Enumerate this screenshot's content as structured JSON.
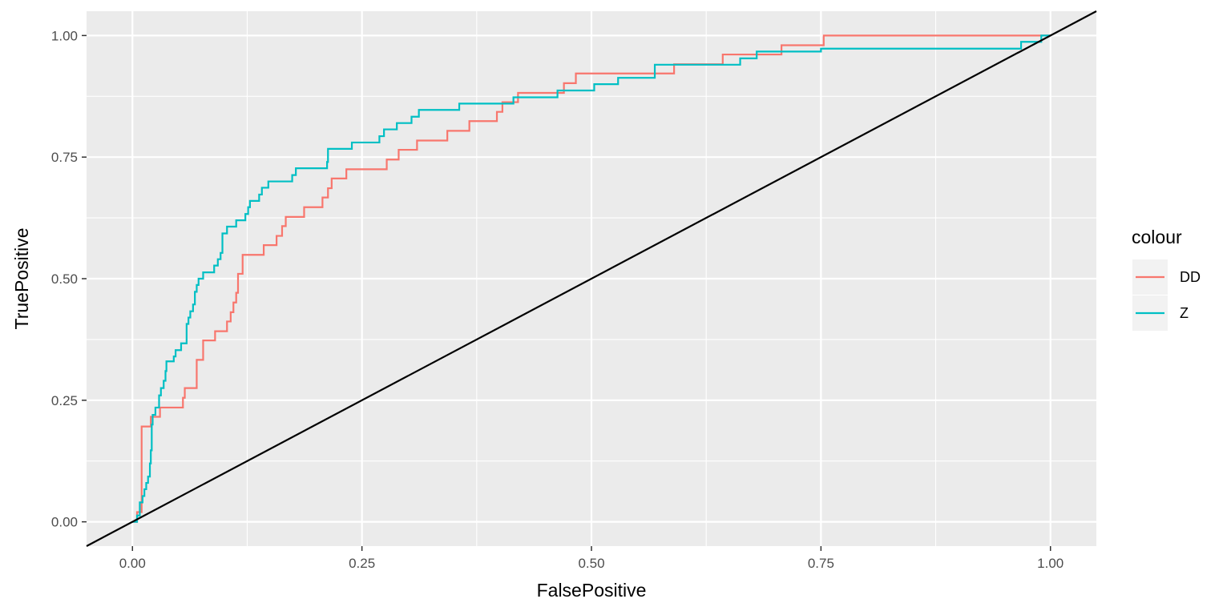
{
  "chart_data": {
    "type": "line",
    "xlabel": "FalsePositive",
    "ylabel": "TruePositive",
    "xlim": [
      -0.05,
      1.05
    ],
    "ylim": [
      -0.05,
      1.05
    ],
    "x_ticks": [
      0,
      0.25,
      0.5,
      0.75,
      1
    ],
    "x_tick_labels": [
      "0.00",
      "0.25",
      "0.50",
      "0.75",
      "1.00"
    ],
    "y_ticks": [
      0,
      0.25,
      0.5,
      0.75,
      1
    ],
    "y_tick_labels": [
      "0.00",
      "0.25",
      "0.50",
      "0.75",
      "1.00"
    ],
    "grid": true,
    "legend": {
      "title": "colour",
      "position": "right"
    },
    "reference_line": {
      "slope": 1,
      "intercept": 0,
      "color": "#000000"
    },
    "series": [
      {
        "name": "DD",
        "color": "#F8766D",
        "points": [
          [
            0.0,
            0.0
          ],
          [
            0.005,
            0.0
          ],
          [
            0.005,
            0.02
          ],
          [
            0.01,
            0.02
          ],
          [
            0.01,
            0.196
          ],
          [
            0.02,
            0.196
          ],
          [
            0.02,
            0.216
          ],
          [
            0.03,
            0.216
          ],
          [
            0.03,
            0.235
          ],
          [
            0.055,
            0.235
          ],
          [
            0.055,
            0.255
          ],
          [
            0.057,
            0.255
          ],
          [
            0.057,
            0.275
          ],
          [
            0.07,
            0.275
          ],
          [
            0.07,
            0.333
          ],
          [
            0.077,
            0.333
          ],
          [
            0.077,
            0.373
          ],
          [
            0.09,
            0.373
          ],
          [
            0.09,
            0.392
          ],
          [
            0.103,
            0.392
          ],
          [
            0.103,
            0.412
          ],
          [
            0.107,
            0.412
          ],
          [
            0.107,
            0.431
          ],
          [
            0.11,
            0.431
          ],
          [
            0.11,
            0.451
          ],
          [
            0.113,
            0.451
          ],
          [
            0.113,
            0.471
          ],
          [
            0.115,
            0.471
          ],
          [
            0.115,
            0.51
          ],
          [
            0.12,
            0.51
          ],
          [
            0.12,
            0.549
          ],
          [
            0.143,
            0.549
          ],
          [
            0.143,
            0.569
          ],
          [
            0.157,
            0.569
          ],
          [
            0.157,
            0.588
          ],
          [
            0.163,
            0.588
          ],
          [
            0.163,
            0.608
          ],
          [
            0.167,
            0.608
          ],
          [
            0.167,
            0.627
          ],
          [
            0.187,
            0.627
          ],
          [
            0.187,
            0.647
          ],
          [
            0.207,
            0.647
          ],
          [
            0.207,
            0.667
          ],
          [
            0.213,
            0.667
          ],
          [
            0.213,
            0.686
          ],
          [
            0.217,
            0.686
          ],
          [
            0.217,
            0.706
          ],
          [
            0.233,
            0.706
          ],
          [
            0.233,
            0.725
          ],
          [
            0.277,
            0.725
          ],
          [
            0.277,
            0.745
          ],
          [
            0.29,
            0.745
          ],
          [
            0.29,
            0.765
          ],
          [
            0.31,
            0.765
          ],
          [
            0.31,
            0.784
          ],
          [
            0.343,
            0.784
          ],
          [
            0.343,
            0.804
          ],
          [
            0.367,
            0.804
          ],
          [
            0.367,
            0.824
          ],
          [
            0.397,
            0.824
          ],
          [
            0.397,
            0.843
          ],
          [
            0.403,
            0.843
          ],
          [
            0.403,
            0.863
          ],
          [
            0.42,
            0.863
          ],
          [
            0.42,
            0.882
          ],
          [
            0.47,
            0.882
          ],
          [
            0.47,
            0.902
          ],
          [
            0.483,
            0.902
          ],
          [
            0.483,
            0.922
          ],
          [
            0.59,
            0.922
          ],
          [
            0.59,
            0.941
          ],
          [
            0.643,
            0.941
          ],
          [
            0.643,
            0.961
          ],
          [
            0.707,
            0.961
          ],
          [
            0.707,
            0.98
          ],
          [
            0.753,
            0.98
          ],
          [
            0.753,
            1.0
          ],
          [
            1.0,
            1.0
          ]
        ]
      },
      {
        "name": "Z",
        "color": "#00BFC4",
        "points": [
          [
            0.0,
            0.0
          ],
          [
            0.005,
            0.0
          ],
          [
            0.005,
            0.013
          ],
          [
            0.008,
            0.013
          ],
          [
            0.008,
            0.04
          ],
          [
            0.011,
            0.04
          ],
          [
            0.011,
            0.053
          ],
          [
            0.013,
            0.053
          ],
          [
            0.013,
            0.067
          ],
          [
            0.015,
            0.067
          ],
          [
            0.015,
            0.08
          ],
          [
            0.017,
            0.08
          ],
          [
            0.017,
            0.093
          ],
          [
            0.019,
            0.093
          ],
          [
            0.019,
            0.12
          ],
          [
            0.02,
            0.12
          ],
          [
            0.02,
            0.147
          ],
          [
            0.021,
            0.147
          ],
          [
            0.021,
            0.2
          ],
          [
            0.022,
            0.2
          ],
          [
            0.022,
            0.22
          ],
          [
            0.025,
            0.22
          ],
          [
            0.025,
            0.235
          ],
          [
            0.029,
            0.235
          ],
          [
            0.029,
            0.26
          ],
          [
            0.031,
            0.26
          ],
          [
            0.031,
            0.275
          ],
          [
            0.034,
            0.275
          ],
          [
            0.034,
            0.29
          ],
          [
            0.036,
            0.29
          ],
          [
            0.036,
            0.31
          ],
          [
            0.037,
            0.31
          ],
          [
            0.037,
            0.33
          ],
          [
            0.045,
            0.33
          ],
          [
            0.045,
            0.34
          ],
          [
            0.047,
            0.34
          ],
          [
            0.047,
            0.353
          ],
          [
            0.053,
            0.353
          ],
          [
            0.053,
            0.367
          ],
          [
            0.059,
            0.367
          ],
          [
            0.059,
            0.407
          ],
          [
            0.061,
            0.407
          ],
          [
            0.061,
            0.42
          ],
          [
            0.063,
            0.42
          ],
          [
            0.063,
            0.433
          ],
          [
            0.066,
            0.433
          ],
          [
            0.066,
            0.447
          ],
          [
            0.068,
            0.447
          ],
          [
            0.068,
            0.473
          ],
          [
            0.07,
            0.473
          ],
          [
            0.07,
            0.487
          ],
          [
            0.072,
            0.487
          ],
          [
            0.072,
            0.5
          ],
          [
            0.077,
            0.5
          ],
          [
            0.077,
            0.513
          ],
          [
            0.089,
            0.513
          ],
          [
            0.089,
            0.527
          ],
          [
            0.093,
            0.527
          ],
          [
            0.093,
            0.54
          ],
          [
            0.096,
            0.54
          ],
          [
            0.096,
            0.553
          ],
          [
            0.098,
            0.553
          ],
          [
            0.098,
            0.593
          ],
          [
            0.103,
            0.593
          ],
          [
            0.103,
            0.607
          ],
          [
            0.113,
            0.607
          ],
          [
            0.113,
            0.62
          ],
          [
            0.123,
            0.62
          ],
          [
            0.123,
            0.633
          ],
          [
            0.126,
            0.633
          ],
          [
            0.126,
            0.647
          ],
          [
            0.128,
            0.647
          ],
          [
            0.128,
            0.66
          ],
          [
            0.138,
            0.66
          ],
          [
            0.138,
            0.673
          ],
          [
            0.141,
            0.673
          ],
          [
            0.141,
            0.687
          ],
          [
            0.148,
            0.687
          ],
          [
            0.148,
            0.7
          ],
          [
            0.174,
            0.7
          ],
          [
            0.174,
            0.713
          ],
          [
            0.178,
            0.713
          ],
          [
            0.178,
            0.727
          ],
          [
            0.212,
            0.727
          ],
          [
            0.212,
            0.74
          ],
          [
            0.213,
            0.74
          ],
          [
            0.213,
            0.767
          ],
          [
            0.239,
            0.767
          ],
          [
            0.239,
            0.78
          ],
          [
            0.269,
            0.78
          ],
          [
            0.269,
            0.793
          ],
          [
            0.274,
            0.793
          ],
          [
            0.274,
            0.807
          ],
          [
            0.288,
            0.807
          ],
          [
            0.288,
            0.82
          ],
          [
            0.304,
            0.82
          ],
          [
            0.304,
            0.833
          ],
          [
            0.312,
            0.833
          ],
          [
            0.312,
            0.847
          ],
          [
            0.356,
            0.847
          ],
          [
            0.356,
            0.86
          ],
          [
            0.415,
            0.86
          ],
          [
            0.415,
            0.873
          ],
          [
            0.463,
            0.873
          ],
          [
            0.463,
            0.887
          ],
          [
            0.503,
            0.887
          ],
          [
            0.503,
            0.9
          ],
          [
            0.529,
            0.9
          ],
          [
            0.529,
            0.913
          ],
          [
            0.569,
            0.913
          ],
          [
            0.569,
            0.94
          ],
          [
            0.662,
            0.94
          ],
          [
            0.662,
            0.953
          ],
          [
            0.68,
            0.953
          ],
          [
            0.68,
            0.967
          ],
          [
            0.75,
            0.967
          ],
          [
            0.75,
            0.973
          ],
          [
            0.968,
            0.973
          ],
          [
            0.968,
            0.987
          ],
          [
            0.99,
            0.987
          ],
          [
            0.99,
            1.0
          ],
          [
            1.0,
            1.0
          ]
        ]
      }
    ]
  }
}
